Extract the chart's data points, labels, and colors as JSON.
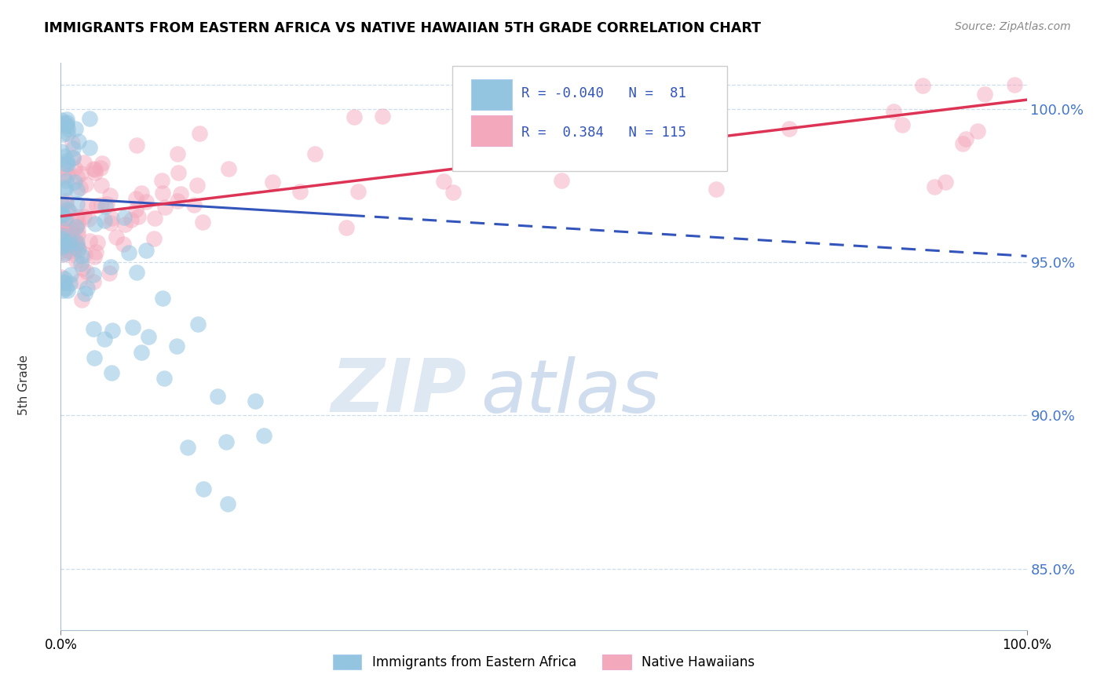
{
  "title": "IMMIGRANTS FROM EASTERN AFRICA VS NATIVE HAWAIIAN 5TH GRADE CORRELATION CHART",
  "source": "Source: ZipAtlas.com",
  "ylabel": "5th Grade",
  "legend_label_blue": "Immigrants from Eastern Africa",
  "legend_label_pink": "Native Hawaiians",
  "r_blue": -0.04,
  "n_blue": 81,
  "r_pink": 0.384,
  "n_pink": 115,
  "blue_color": "#93C4E0",
  "pink_color": "#F4A8BC",
  "trend_blue_color": "#3355BB",
  "trend_pink_color": "#DD3355",
  "label_color": "#4477CC",
  "xlim": [
    0,
    100
  ],
  "ylim": [
    83,
    101.5
  ],
  "ytick_values": [
    85,
    90,
    95,
    100
  ],
  "watermark_zip": "ZIP",
  "watermark_atlas": "atlas",
  "blue_trend_start_y": 97.1,
  "blue_trend_end_y": 95.2,
  "pink_trend_start_y": 96.5,
  "pink_trend_end_y": 100.3,
  "grid_color": "#CCDDEE",
  "spine_color": "#AABBCC"
}
